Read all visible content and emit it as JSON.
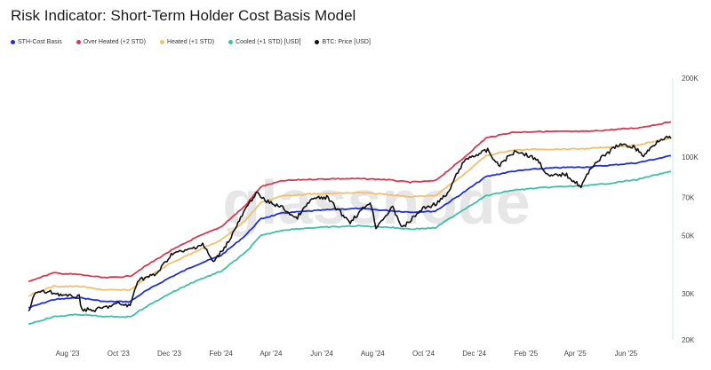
{
  "chart_data": {
    "type": "line",
    "title": "Risk Indicator: Short-Term Holder Cost Basis Model",
    "watermark": "glassnode",
    "y_scale": "log",
    "ylim": [
      20000,
      200000
    ],
    "y_ticks": [
      {
        "value": 20000,
        "label": "20K"
      },
      {
        "value": 30000,
        "label": "30K"
      },
      {
        "value": 50000,
        "label": "50K"
      },
      {
        "value": 70000,
        "label": "70K"
      },
      {
        "value": 100000,
        "label": "100K"
      },
      {
        "value": 200000,
        "label": "200K"
      }
    ],
    "x_range": [
      "2023-06-15",
      "2025-07-25"
    ],
    "x_ticks": [
      {
        "date": "2023-08-01",
        "label": "Aug '23"
      },
      {
        "date": "2023-10-01",
        "label": "Oct '23"
      },
      {
        "date": "2023-12-01",
        "label": "Dec '23"
      },
      {
        "date": "2024-02-01",
        "label": "Feb '24"
      },
      {
        "date": "2024-04-01",
        "label": "Apr '24"
      },
      {
        "date": "2024-06-01",
        "label": "Jun '24"
      },
      {
        "date": "2024-08-01",
        "label": "Aug '24"
      },
      {
        "date": "2024-10-01",
        "label": "Oct '24"
      },
      {
        "date": "2024-12-01",
        "label": "Dec '24"
      },
      {
        "date": "2025-02-01",
        "label": "Feb '25"
      },
      {
        "date": "2025-04-01",
        "label": "Apr '25"
      },
      {
        "date": "2025-06-01",
        "label": "Jun '25"
      }
    ],
    "legend_position": "top-left",
    "grid": false,
    "series": [
      {
        "name": "STH-Cost Basis",
        "color": "#1f2fd6",
        "points": [
          [
            "2023-06-15",
            26500
          ],
          [
            "2023-07-15",
            28500
          ],
          [
            "2023-08-15",
            29000
          ],
          [
            "2023-09-15",
            28000
          ],
          [
            "2023-10-15",
            28000
          ],
          [
            "2023-11-01",
            30500
          ],
          [
            "2023-12-01",
            34500
          ],
          [
            "2024-01-01",
            38500
          ],
          [
            "2024-02-01",
            42000
          ],
          [
            "2024-03-01",
            50000
          ],
          [
            "2024-03-20",
            58000
          ],
          [
            "2024-04-15",
            61000
          ],
          [
            "2024-05-15",
            62000
          ],
          [
            "2024-06-15",
            63000
          ],
          [
            "2024-07-15",
            63500
          ],
          [
            "2024-08-15",
            62500
          ],
          [
            "2024-09-15",
            61500
          ],
          [
            "2024-10-15",
            62000
          ],
          [
            "2024-11-15",
            72000
          ],
          [
            "2024-12-15",
            84000
          ],
          [
            "2025-01-15",
            88000
          ],
          [
            "2025-02-15",
            90000
          ],
          [
            "2025-03-15",
            91000
          ],
          [
            "2025-04-15",
            91500
          ],
          [
            "2025-05-15",
            93000
          ],
          [
            "2025-06-15",
            95000
          ],
          [
            "2025-07-25",
            101000
          ]
        ]
      },
      {
        "name": "Over Heated (+2 STD)",
        "color": "#d23a52",
        "points": [
          [
            "2023-06-15",
            33500
          ],
          [
            "2023-07-15",
            36000
          ],
          [
            "2023-08-15",
            35500
          ],
          [
            "2023-09-15",
            34500
          ],
          [
            "2023-10-15",
            35000
          ],
          [
            "2023-11-01",
            38000
          ],
          [
            "2023-12-01",
            43500
          ],
          [
            "2024-01-01",
            49000
          ],
          [
            "2024-02-01",
            54000
          ],
          [
            "2024-03-01",
            65000
          ],
          [
            "2024-03-20",
            77000
          ],
          [
            "2024-04-15",
            81000
          ],
          [
            "2024-05-15",
            82000
          ],
          [
            "2024-06-15",
            82500
          ],
          [
            "2024-07-15",
            82500
          ],
          [
            "2024-08-15",
            82000
          ],
          [
            "2024-09-15",
            80000
          ],
          [
            "2024-10-15",
            81000
          ],
          [
            "2024-11-15",
            97000
          ],
          [
            "2024-12-15",
            118000
          ],
          [
            "2025-01-15",
            124000
          ],
          [
            "2025-02-15",
            125000
          ],
          [
            "2025-03-15",
            125000
          ],
          [
            "2025-04-15",
            125000
          ],
          [
            "2025-05-15",
            127000
          ],
          [
            "2025-06-15",
            129000
          ],
          [
            "2025-07-25",
            136000
          ]
        ]
      },
      {
        "name": "Heated (+1 STD)",
        "color": "#f0c070",
        "points": [
          [
            "2023-06-15",
            29500
          ],
          [
            "2023-07-15",
            32000
          ],
          [
            "2023-08-15",
            32000
          ],
          [
            "2023-09-15",
            31000
          ],
          [
            "2023-10-15",
            31000
          ],
          [
            "2023-11-01",
            34000
          ],
          [
            "2023-12-01",
            39000
          ],
          [
            "2024-01-01",
            43500
          ],
          [
            "2024-02-01",
            48000
          ],
          [
            "2024-03-01",
            57000
          ],
          [
            "2024-03-20",
            67000
          ],
          [
            "2024-04-15",
            71000
          ],
          [
            "2024-05-15",
            72000
          ],
          [
            "2024-06-15",
            72500
          ],
          [
            "2024-07-15",
            73000
          ],
          [
            "2024-08-15",
            72000
          ],
          [
            "2024-09-15",
            70500
          ],
          [
            "2024-10-15",
            71000
          ],
          [
            "2024-11-15",
            84000
          ],
          [
            "2024-12-15",
            101000
          ],
          [
            "2025-01-15",
            106000
          ],
          [
            "2025-02-15",
            107000
          ],
          [
            "2025-03-15",
            107000
          ],
          [
            "2025-04-15",
            107500
          ],
          [
            "2025-05-15",
            109000
          ],
          [
            "2025-06-15",
            111000
          ],
          [
            "2025-07-25",
            118000
          ]
        ]
      },
      {
        "name": "Cooled (+1 STD) [USD]",
        "color": "#3fbfa8",
        "points": [
          [
            "2023-06-15",
            23000
          ],
          [
            "2023-07-15",
            24500
          ],
          [
            "2023-08-15",
            25000
          ],
          [
            "2023-09-15",
            24500
          ],
          [
            "2023-10-15",
            24500
          ],
          [
            "2023-11-01",
            26500
          ],
          [
            "2023-12-01",
            30000
          ],
          [
            "2024-01-01",
            33500
          ],
          [
            "2024-02-01",
            36500
          ],
          [
            "2024-03-01",
            43000
          ],
          [
            "2024-03-20",
            50000
          ],
          [
            "2024-04-15",
            52500
          ],
          [
            "2024-05-15",
            53500
          ],
          [
            "2024-06-15",
            54000
          ],
          [
            "2024-07-15",
            54500
          ],
          [
            "2024-08-15",
            54000
          ],
          [
            "2024-09-15",
            53000
          ],
          [
            "2024-10-15",
            53500
          ],
          [
            "2024-11-15",
            62000
          ],
          [
            "2024-12-15",
            71000
          ],
          [
            "2025-01-15",
            74500
          ],
          [
            "2025-02-15",
            76000
          ],
          [
            "2025-03-15",
            77000
          ],
          [
            "2025-04-15",
            77500
          ],
          [
            "2025-05-15",
            79500
          ],
          [
            "2025-06-15",
            82000
          ],
          [
            "2025-07-25",
            88000
          ]
        ]
      },
      {
        "name": "BTC: Price [USD]",
        "color": "#111111",
        "points": [
          [
            "2023-06-15",
            25500
          ],
          [
            "2023-06-22",
            30000
          ],
          [
            "2023-07-01",
            30500
          ],
          [
            "2023-07-15",
            30300
          ],
          [
            "2023-08-01",
            29300
          ],
          [
            "2023-08-15",
            29200
          ],
          [
            "2023-08-18",
            26200
          ],
          [
            "2023-09-01",
            25900
          ],
          [
            "2023-09-15",
            26600
          ],
          [
            "2023-10-01",
            27500
          ],
          [
            "2023-10-15",
            26900
          ],
          [
            "2023-10-24",
            33900
          ],
          [
            "2023-11-15",
            35500
          ],
          [
            "2023-12-05",
            43000
          ],
          [
            "2023-12-20",
            43600
          ],
          [
            "2024-01-10",
            46500
          ],
          [
            "2024-01-23",
            39500
          ],
          [
            "2024-02-10",
            47500
          ],
          [
            "2024-02-28",
            61000
          ],
          [
            "2024-03-14",
            73000
          ],
          [
            "2024-03-25",
            68000
          ],
          [
            "2024-04-15",
            64000
          ],
          [
            "2024-05-01",
            58000
          ],
          [
            "2024-05-20",
            69000
          ],
          [
            "2024-06-07",
            70000
          ],
          [
            "2024-06-25",
            60500
          ],
          [
            "2024-07-05",
            56500
          ],
          [
            "2024-07-29",
            67500
          ],
          [
            "2024-08-05",
            54000
          ],
          [
            "2024-08-25",
            64000
          ],
          [
            "2024-09-06",
            53500
          ],
          [
            "2024-09-30",
            63500
          ],
          [
            "2024-10-15",
            66000
          ],
          [
            "2024-10-30",
            72000
          ],
          [
            "2024-11-13",
            90000
          ],
          [
            "2024-11-22",
            98500
          ],
          [
            "2024-12-17",
            106000
          ],
          [
            "2024-12-30",
            92500
          ],
          [
            "2025-01-20",
            106000
          ],
          [
            "2025-02-15",
            97500
          ],
          [
            "2025-02-28",
            84000
          ],
          [
            "2025-03-20",
            86000
          ],
          [
            "2025-04-08",
            77000
          ],
          [
            "2025-04-22",
            93000
          ],
          [
            "2025-05-22",
            111000
          ],
          [
            "2025-06-10",
            109500
          ],
          [
            "2025-06-22",
            101000
          ],
          [
            "2025-07-10",
            116000
          ],
          [
            "2025-07-18",
            119000
          ],
          [
            "2025-07-25",
            117500
          ]
        ]
      }
    ]
  }
}
